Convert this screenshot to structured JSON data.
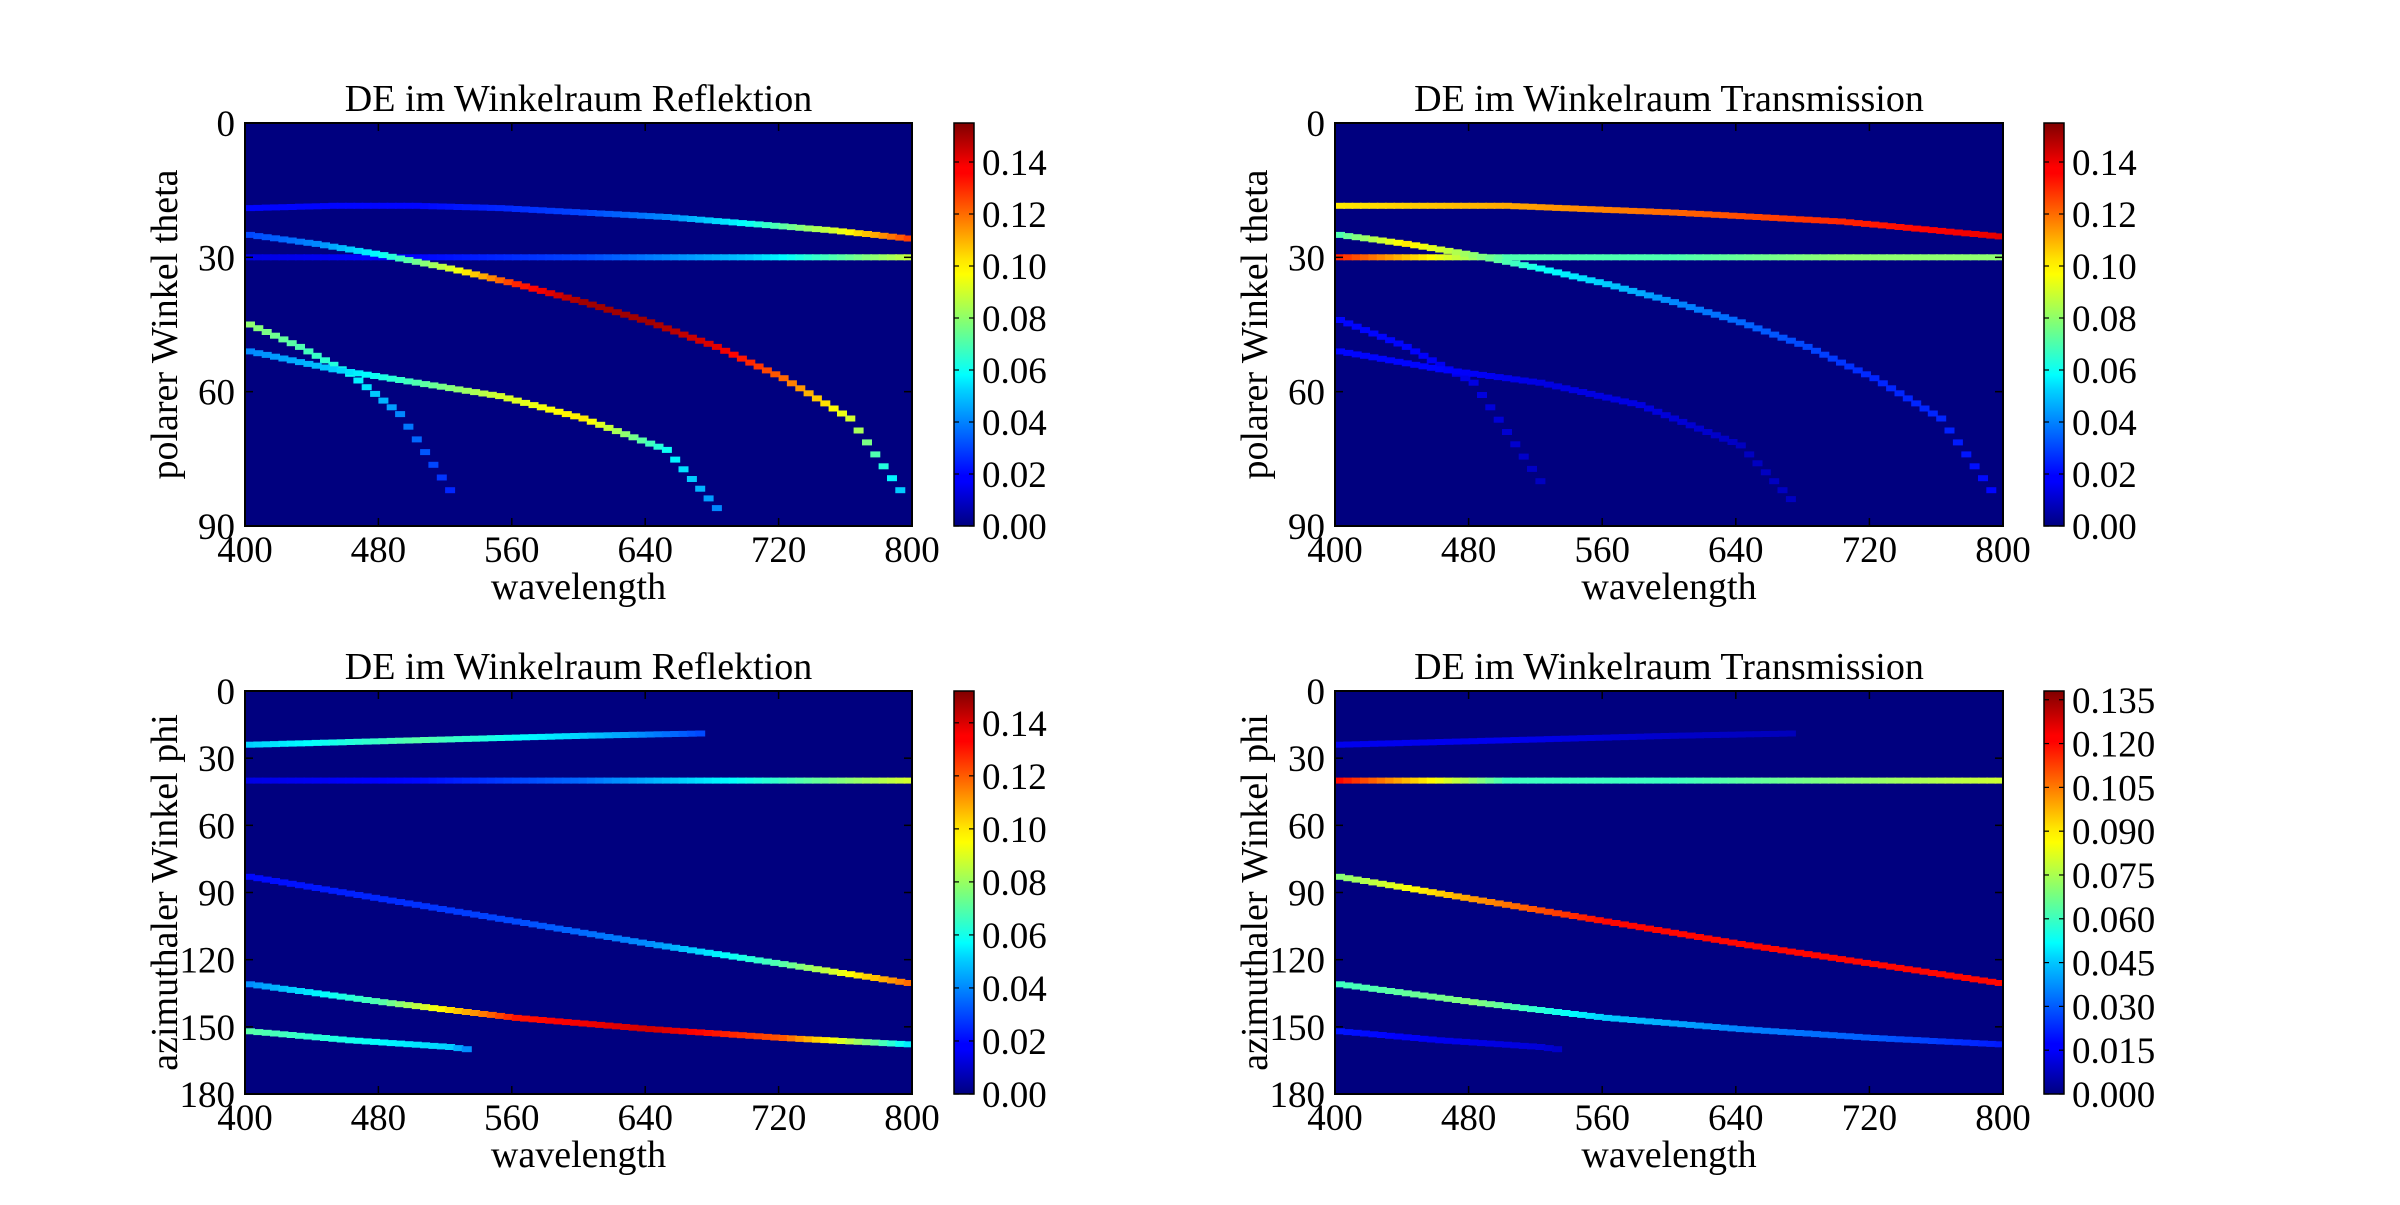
{
  "colors": {
    "background": "#00007f",
    "frame": "#000000",
    "colormap": "jet"
  },
  "chart_data": [
    {
      "type": "heatmap",
      "title": "DE im Winkelraum Reflektion",
      "xlabel": "wavelength",
      "ylabel": "polarer Winkel theta",
      "xlim": [
        400,
        800
      ],
      "ylim": [
        0,
        90
      ],
      "y_inverted": true,
      "xticks": [
        "400",
        "480",
        "560",
        "640",
        "720",
        "800"
      ],
      "yticks": [
        "0",
        "30",
        "60",
        "90"
      ],
      "colorbar": {
        "min": 0,
        "max": 0.155,
        "ticks": [
          "0.00",
          "0.02",
          "0.04",
          "0.06",
          "0.08",
          "0.10",
          "0.12",
          "0.14"
        ]
      },
      "series": [
        {
          "x": [
            400,
            450,
            500,
            550,
            600,
            650,
            700,
            750,
            800
          ],
          "y": [
            19,
            18.5,
            18.5,
            19,
            20,
            21,
            22.5,
            24,
            26
          ],
          "v": [
            0.02,
            0.02,
            0.02,
            0.025,
            0.03,
            0.04,
            0.06,
            0.09,
            0.13
          ]
        },
        {
          "x": [
            400,
            500,
            600,
            700,
            800
          ],
          "y": [
            30,
            30,
            30,
            30,
            30
          ],
          "v": [
            0.015,
            0.02,
            0.03,
            0.05,
            0.09
          ]
        },
        {
          "x": [
            400,
            440,
            480,
            520,
            560,
            600,
            640,
            680,
            720,
            760,
            790
          ],
          "y": [
            25,
            27,
            29.5,
            32.5,
            36,
            40,
            44.5,
            50,
            57,
            66,
            82
          ],
          "v": [
            0.03,
            0.04,
            0.06,
            0.09,
            0.13,
            0.15,
            0.15,
            0.14,
            0.12,
            0.09,
            0.05
          ]
        },
        {
          "x": [
            400,
            430,
            460,
            490,
            520
          ],
          "y": [
            45,
            50,
            56,
            65,
            82
          ],
          "v": [
            0.08,
            0.07,
            0.06,
            0.04,
            0.025
          ]
        },
        {
          "x": [
            400,
            450,
            500,
            550,
            600,
            650,
            680
          ],
          "y": [
            51,
            55,
            58,
            61,
            66,
            73,
            86
          ],
          "v": [
            0.04,
            0.05,
            0.07,
            0.09,
            0.1,
            0.06,
            0.04
          ]
        }
      ]
    },
    {
      "type": "heatmap",
      "title": "DE im Winkelraum Transmission",
      "xlabel": "wavelength",
      "ylabel": "polarer Winkel theta",
      "xlim": [
        400,
        800
      ],
      "ylim": [
        0,
        90
      ],
      "y_inverted": true,
      "xticks": [
        "400",
        "480",
        "560",
        "640",
        "720",
        "800"
      ],
      "yticks": [
        "0",
        "30",
        "60",
        "90"
      ],
      "colorbar": {
        "min": 0,
        "max": 0.155,
        "ticks": [
          "0.00",
          "0.02",
          "0.04",
          "0.06",
          "0.08",
          "0.10",
          "0.12",
          "0.14"
        ]
      },
      "series": [
        {
          "x": [
            400,
            500,
            600,
            700,
            800
          ],
          "y": [
            18.5,
            18.5,
            20,
            22,
            25.5
          ],
          "v": [
            0.1,
            0.11,
            0.12,
            0.13,
            0.14
          ]
        },
        {
          "x": [
            400,
            500,
            600,
            700,
            800
          ],
          "y": [
            30,
            30,
            30,
            30,
            30
          ],
          "v": [
            0.13,
            0.07,
            0.07,
            0.08,
            0.08
          ]
        },
        {
          "x": [
            400,
            440,
            480,
            520,
            560,
            600,
            640,
            680,
            720,
            760,
            790
          ],
          "y": [
            25,
            27,
            29.5,
            32.5,
            36,
            40,
            44.5,
            50,
            57,
            66,
            82
          ],
          "v": [
            0.07,
            0.1,
            0.08,
            0.06,
            0.05,
            0.04,
            0.035,
            0.03,
            0.025,
            0.025,
            0.02
          ]
        },
        {
          "x": [
            400,
            440,
            480,
            520
          ],
          "y": [
            44,
            50,
            58,
            80
          ],
          "v": [
            0.02,
            0.02,
            0.015,
            0.01
          ]
        },
        {
          "x": [
            400,
            460,
            520,
            580,
            640,
            670
          ],
          "y": [
            51,
            55,
            58,
            63,
            72,
            84
          ],
          "v": [
            0.02,
            0.02,
            0.015,
            0.015,
            0.01,
            0.01
          ]
        }
      ]
    },
    {
      "type": "heatmap",
      "title": "DE im Winkelraum Reflektion",
      "xlabel": "wavelength",
      "ylabel": "azimuthaler Winkel phi",
      "xlim": [
        400,
        800
      ],
      "ylim": [
        0,
        180
      ],
      "y_inverted": true,
      "xticks": [
        "400",
        "480",
        "560",
        "640",
        "720",
        "800"
      ],
      "yticks": [
        "0",
        "30",
        "60",
        "90",
        "120",
        "150",
        "180"
      ],
      "colorbar": {
        "min": 0,
        "max": 0.152,
        "ticks": [
          "0.00",
          "0.02",
          "0.04",
          "0.06",
          "0.08",
          "0.10",
          "0.12",
          "0.14"
        ]
      },
      "series": [
        {
          "x": [
            400,
            500,
            600,
            670
          ],
          "y": [
            24,
            22,
            20,
            19
          ],
          "v": [
            0.05,
            0.07,
            0.05,
            0.03
          ]
        },
        {
          "x": [
            400,
            500,
            600,
            700,
            800
          ],
          "y": [
            40,
            40,
            40,
            40,
            40
          ],
          "v": [
            0.015,
            0.02,
            0.035,
            0.06,
            0.09
          ]
        },
        {
          "x": [
            400,
            480,
            560,
            640,
            720,
            800
          ],
          "y": [
            83,
            93,
            103,
            113,
            122,
            131
          ],
          "v": [
            0.02,
            0.025,
            0.03,
            0.04,
            0.07,
            0.12
          ]
        },
        {
          "x": [
            400,
            480,
            560,
            640,
            720,
            800
          ],
          "y": [
            131,
            139,
            146,
            151,
            155,
            158
          ],
          "v": [
            0.04,
            0.07,
            0.13,
            0.14,
            0.12,
            0.05
          ]
        },
        {
          "x": [
            400,
            460,
            520,
            530
          ],
          "y": [
            152,
            156,
            159,
            160
          ],
          "v": [
            0.07,
            0.06,
            0.05,
            0.04
          ]
        }
      ]
    },
    {
      "type": "heatmap",
      "title": "DE im Winkelraum Transmission",
      "xlabel": "wavelength",
      "ylabel": "azimuthaler Winkel phi",
      "xlim": [
        400,
        800
      ],
      "ylim": [
        0,
        180
      ],
      "y_inverted": true,
      "xticks": [
        "400",
        "480",
        "560",
        "640",
        "720",
        "800"
      ],
      "yticks": [
        "0",
        "30",
        "60",
        "90",
        "120",
        "150",
        "180"
      ],
      "colorbar": {
        "min": 0,
        "max": 0.138,
        "ticks": [
          "0.000",
          "0.015",
          "0.030",
          "0.045",
          "0.060",
          "0.075",
          "0.090",
          "0.105",
          "0.120",
          "0.135"
        ]
      },
      "series": [
        {
          "x": [
            400,
            500,
            600,
            670
          ],
          "y": [
            24,
            22,
            20,
            19
          ],
          "v": [
            0.015,
            0.015,
            0.01,
            0.008
          ]
        },
        {
          "x": [
            400,
            500,
            600,
            700,
            800
          ],
          "y": [
            40,
            40,
            40,
            40,
            40
          ],
          "v": [
            0.12,
            0.06,
            0.06,
            0.07,
            0.08
          ]
        },
        {
          "x": [
            400,
            480,
            560,
            640,
            720,
            800
          ],
          "y": [
            83,
            93,
            103,
            113,
            122,
            131
          ],
          "v": [
            0.07,
            0.1,
            0.12,
            0.12,
            0.12,
            0.12
          ]
        },
        {
          "x": [
            400,
            480,
            560,
            640,
            720,
            800
          ],
          "y": [
            131,
            139,
            146,
            151,
            155,
            158
          ],
          "v": [
            0.06,
            0.07,
            0.045,
            0.035,
            0.03,
            0.02
          ]
        },
        {
          "x": [
            400,
            460,
            520,
            530
          ],
          "y": [
            152,
            156,
            159,
            160
          ],
          "v": [
            0.02,
            0.015,
            0.012,
            0.01
          ]
        }
      ]
    }
  ]
}
